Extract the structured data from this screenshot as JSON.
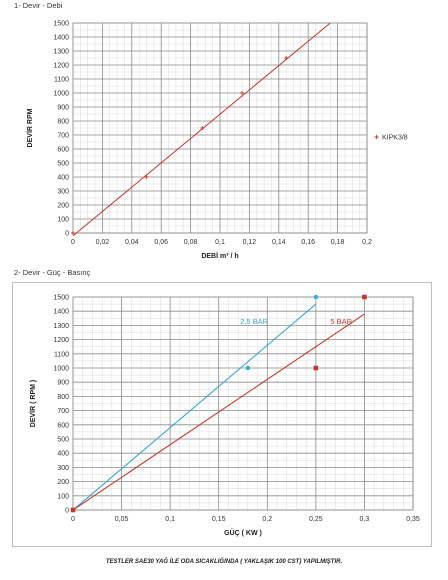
{
  "sections": {
    "title1": "1- Devir - Debi",
    "title2": "2- Devir - Güç - Basınç"
  },
  "footer": "TESTLER SAE30 YAĞ İLE ODA SICAKLIĞINDA ( YAKLAŞIK 100 CST) YAPILMIŞTIR.",
  "chart_data": [
    {
      "type": "scatter",
      "title": "",
      "xlabel": "DEBİ m³ / h",
      "ylabel": "DEVİR RPM",
      "xlim": [
        0,
        0.2
      ],
      "ylim": [
        0,
        1500
      ],
      "xticks": [
        "0",
        "0,02",
        "0,04",
        "0,06",
        "0,08",
        "0,1",
        "0,12",
        "0,14",
        "0,16",
        "0,18",
        "0,2"
      ],
      "yticks": [
        "0",
        "100",
        "200",
        "300",
        "400",
        "500",
        "600",
        "700",
        "800",
        "900",
        "1000",
        "1100",
        "1200",
        "1300",
        "1400",
        "1500"
      ],
      "grid": true,
      "legend_position": "right",
      "series": [
        {
          "name": "KIPK3/8",
          "color": "#c0392b",
          "marker": "plus",
          "x": [
            0,
            0.05,
            0.088,
            0.115,
            0.145
          ],
          "y": [
            0,
            400,
            750,
            1000,
            1250
          ]
        }
      ],
      "trendlines": [
        {
          "color": "#c0392b",
          "x": [
            0,
            0.175
          ],
          "y": [
            -20,
            1500
          ]
        }
      ]
    },
    {
      "type": "scatter",
      "title": "",
      "xlabel": "GÜÇ ( KW )",
      "ylabel": "DEVİR ( RPM )",
      "xlim": [
        0,
        0.35
      ],
      "ylim": [
        0,
        1500
      ],
      "xticks": [
        "0",
        "0,05",
        "0,1",
        "0,15",
        "0,2",
        "0,25",
        "0,3",
        "0,35"
      ],
      "yticks": [
        "0",
        "100",
        "200",
        "300",
        "400",
        "500",
        "600",
        "700",
        "800",
        "900",
        "1000",
        "1100",
        "1200",
        "1300",
        "1400",
        "1500"
      ],
      "grid": true,
      "series": [
        {
          "name": "2,5 BAR",
          "color": "#3ba7d0",
          "marker": "circle",
          "x": [
            0,
            0.18,
            0.25
          ],
          "y": [
            0,
            1000,
            1500
          ],
          "trend": {
            "x": [
              0,
              0.25
            ],
            "y": [
              0,
              1450
            ]
          }
        },
        {
          "name": "5 BAR",
          "color": "#c0392b",
          "marker": "square",
          "x": [
            0,
            0.25,
            0.3
          ],
          "y": [
            0,
            1000,
            1500
          ],
          "trend": {
            "x": [
              0,
              0.3
            ],
            "y": [
              0,
              1380
            ]
          }
        }
      ]
    }
  ]
}
